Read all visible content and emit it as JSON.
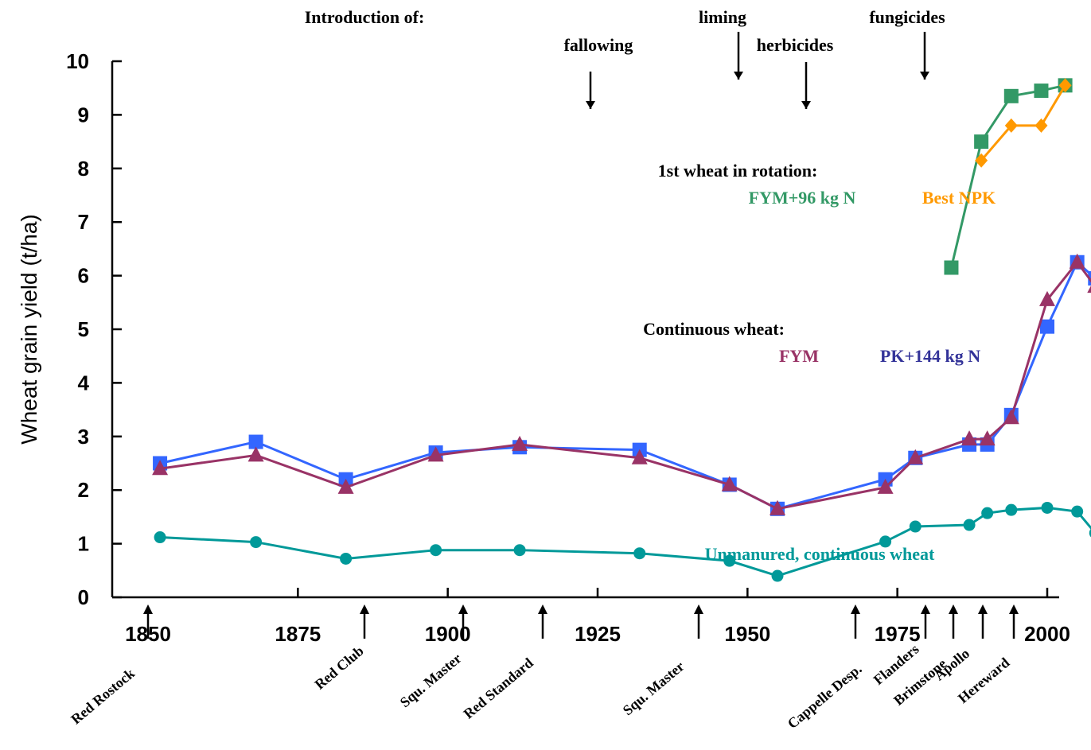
{
  "chart_data": {
    "type": "line",
    "title": "",
    "xlabel": "",
    "ylabel": "Wheat grain yield (t/ha)",
    "xlim": [
      1850,
      2000
    ],
    "ylim": [
      0,
      10
    ],
    "x_ticks": [
      1850,
      1875,
      1900,
      1925,
      1950,
      1975,
      2000
    ],
    "y_ticks": [
      0,
      1,
      2,
      3,
      4,
      5,
      6,
      7,
      8,
      9,
      10
    ],
    "grid": false,
    "colors": {
      "blue": "#3366ff",
      "maroon": "#993366",
      "green": "#339966",
      "orange": "#ff9900",
      "teal": "#009999",
      "navy": "#333399",
      "black": "#000000"
    },
    "series": [
      {
        "name": "PK+144 kg N",
        "color": "#3366ff",
        "marker": "square",
        "x": [
          1852,
          1868,
          1883,
          1898,
          1912,
          1932,
          1947,
          1955,
          1973,
          1978,
          1987,
          1990,
          1994,
          2000,
          2005,
          2008
        ],
        "y": [
          2.5,
          2.9,
          2.2,
          2.7,
          2.8,
          2.75,
          2.1,
          1.65,
          2.2,
          2.6,
          2.85,
          2.85,
          3.4,
          5.05,
          6.25,
          5.95
        ]
      },
      {
        "name": "FYM",
        "color": "#993366",
        "marker": "triangle",
        "x": [
          1852,
          1868,
          1883,
          1898,
          1912,
          1932,
          1947,
          1955,
          1973,
          1978,
          1987,
          1990,
          1994,
          2000,
          2005,
          2008
        ],
        "y": [
          2.4,
          2.65,
          2.05,
          2.65,
          2.85,
          2.6,
          2.1,
          1.65,
          2.05,
          2.6,
          2.95,
          2.95,
          3.35,
          5.55,
          6.25,
          5.8
        ]
      },
      {
        "name": "FYM+96 kg N",
        "color": "#339966",
        "marker": "square",
        "x": [
          1984,
          1989,
          1994,
          1999,
          2003
        ],
        "y": [
          6.15,
          8.5,
          9.35,
          9.45,
          9.55
        ]
      },
      {
        "name": "Best NPK",
        "color": "#ff9900",
        "marker": "diamond",
        "x": [
          1989,
          1994,
          1999,
          2003
        ],
        "y": [
          8.15,
          8.8,
          8.8,
          9.55
        ]
      },
      {
        "name": "Unmanured, continuous wheat",
        "color": "#009999",
        "marker": "circle",
        "x": [
          1852,
          1868,
          1883,
          1898,
          1912,
          1932,
          1947,
          1955,
          1973,
          1978,
          1987,
          1990,
          1994,
          2000,
          2005,
          2008
        ],
        "y": [
          1.12,
          1.03,
          0.72,
          0.88,
          0.88,
          0.82,
          0.68,
          0.4,
          1.04,
          1.32,
          1.35,
          1.57,
          1.63,
          1.67,
          1.6,
          1.2
        ]
      }
    ],
    "x_positions_note_hidden": null,
    "annotations": {
      "introduction": "Introduction of:",
      "practices": [
        {
          "label": "fallowing",
          "year": 1926
        },
        {
          "label": "liming",
          "year": 1949
        },
        {
          "label": "herbicides",
          "year": 1966
        },
        {
          "label": "fungicides",
          "year": 1980
        }
      ],
      "rotation_title": "1st wheat in rotation:",
      "rotation_fym": "FYM+96  kg N",
      "rotation_npk": "Best NPK",
      "continuous_title": "Continuous  wheat:",
      "continuous_fym": "FYM",
      "continuous_pk": "PK+144 kg N",
      "unmanured": "Unmanured,  continuous  wheat"
    },
    "varieties": [
      {
        "label": "Red Rostock",
        "year": 1851
      },
      {
        "label": "Red Club",
        "year": 1891
      },
      {
        "label": "Squ. Master",
        "year": 1901
      },
      {
        "label": "Red Standard",
        "year": 1920
      },
      {
        "label": "Squ. Master",
        "year": 1945
      },
      {
        "label": "Cappelle Desp.",
        "year": 1968
      },
      {
        "label": "Flanders",
        "year": 1981
      },
      {
        "label": "Brimstone",
        "year": 1984
      },
      {
        "label": "Apollo",
        "year": 1987
      },
      {
        "label": "Hereward",
        "year": 1990
      }
    ]
  }
}
